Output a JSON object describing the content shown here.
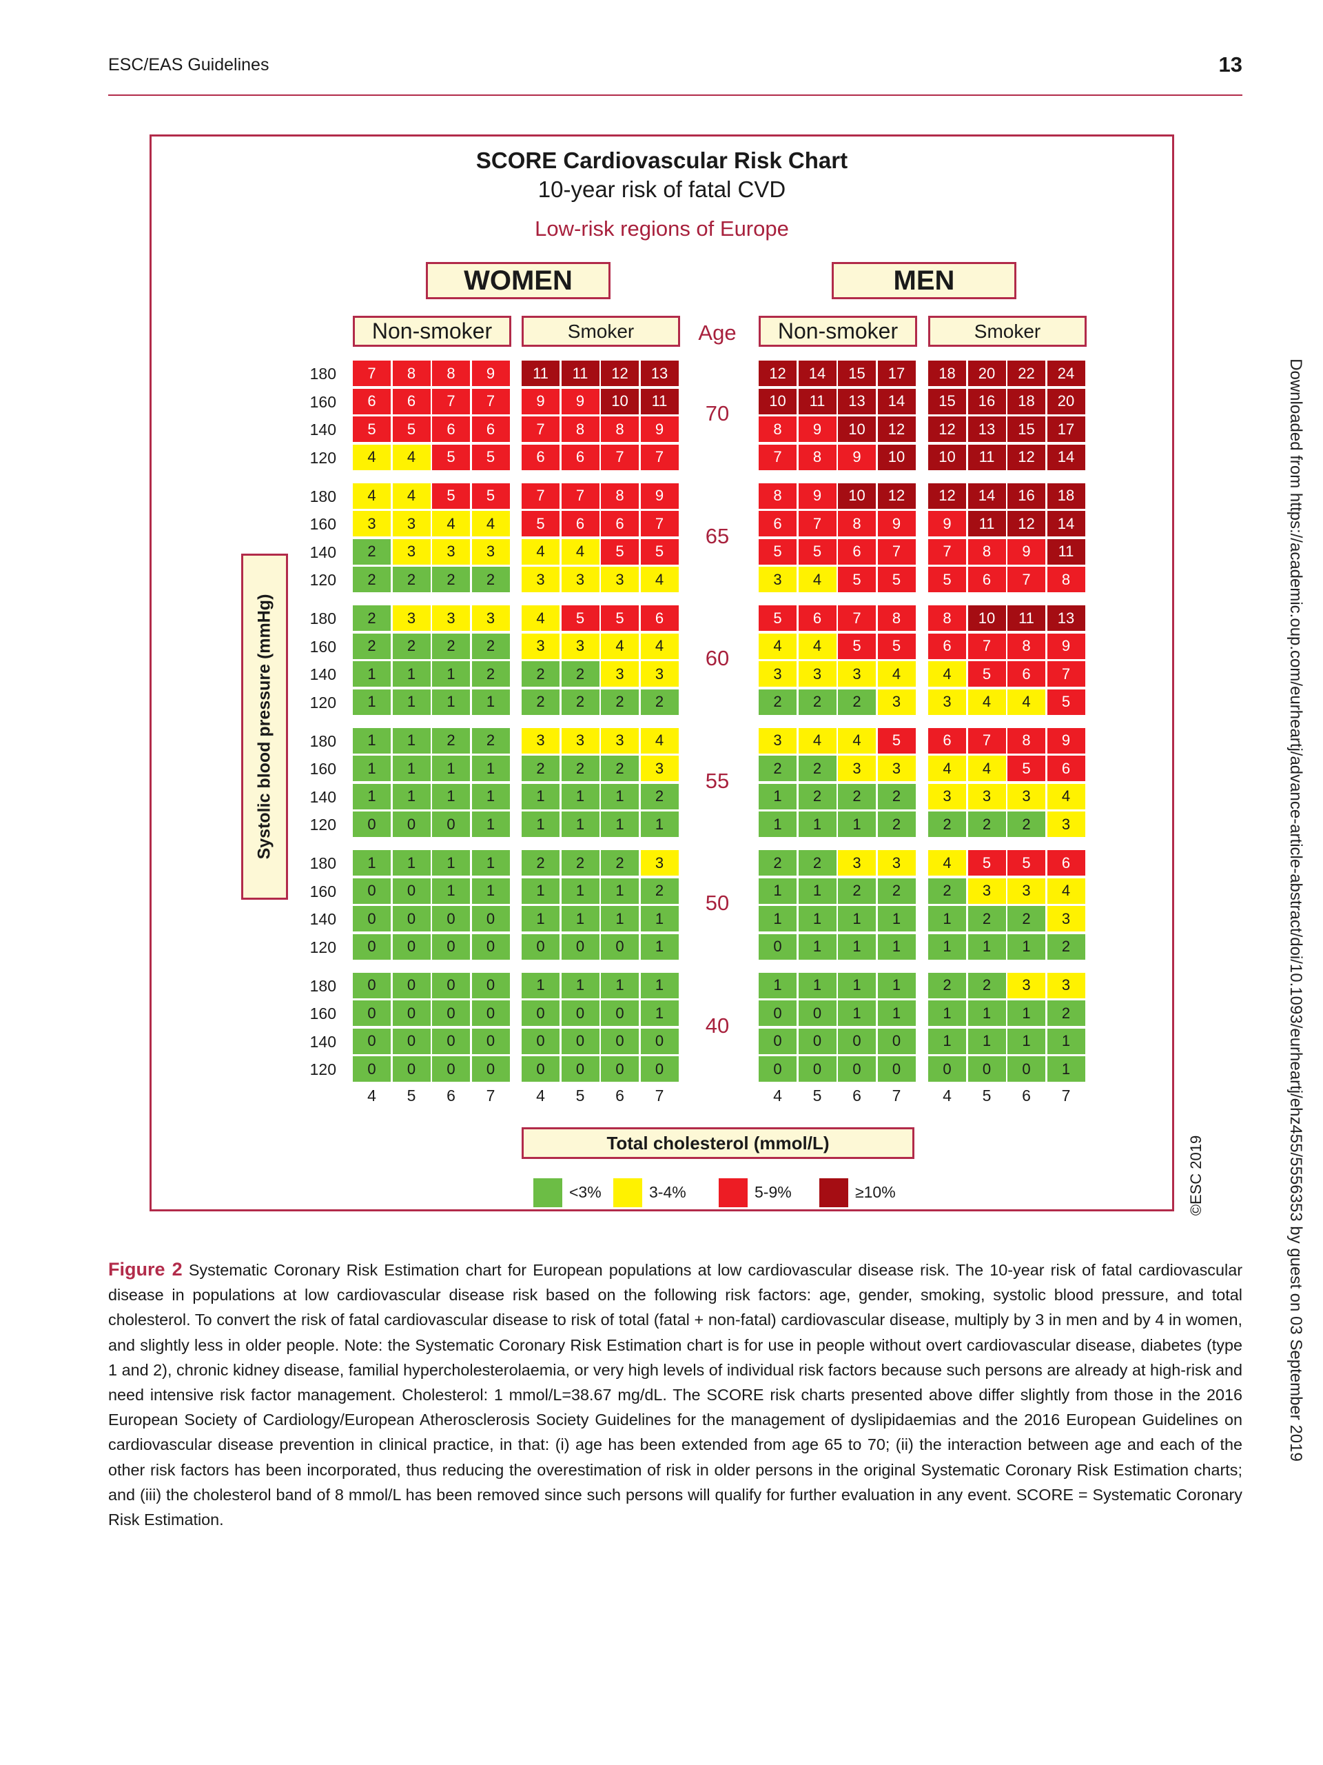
{
  "header": {
    "journal": "ESC/EAS Guidelines",
    "page_number": "13"
  },
  "copyright": "©ESC 2019",
  "side_note": "Downloaded from https://academic.oup.com/eurheartj/advance-article-abstract/doi/10.1093/eurheartj/ehz455/5556353 by guest on 03 September 2019",
  "caption": {
    "label": "Figure 2",
    "text": "Systematic Coronary Risk Estimation chart for European populations at low cardiovascular disease risk. The 10-year risk of fatal cardiovascular disease in populations at low cardiovascular disease risk based on the following risk factors: age, gender, smoking, systolic blood pressure, and total cholesterol. To convert the risk of fatal cardiovascular disease to risk of total (fatal + non-fatal) cardiovascular disease, multiply by 3 in men and by 4 in women, and slightly less in older people. Note: the Systematic Coronary Risk Estimation chart is for use in people without overt cardiovascular disease, diabetes (type 1 and 2), chronic kidney disease, familial hypercholesterolaemia, or very high levels of individual risk factors because such persons are already at high-risk and need intensive risk factor management. Cholesterol: 1 mmol/L=38.67 mg/dL. The SCORE risk charts presented above differ slightly from those in the 2016 European Society of Cardiology/European Atherosclerosis Society Guidelines for the management of dyslipidaemias and the 2016 European Guidelines on cardiovascular disease prevention in clinical practice, in that: (i) age has been extended from age 65 to 70; (ii) the interaction between age and each of the other risk factors has been incorporated, thus reducing the overestimation of risk in older persons in the original Systematic Coronary Risk Estimation charts; and (iii) the cholesterol band of 8 mmol/L has been removed since such persons will qualify for further evaluation in any event. SCORE = Systematic Coronary Risk Estimation."
  },
  "chart_data": {
    "type": "heatmap",
    "title": "SCORE Cardiovascular Risk Chart",
    "subtitle": "10-year risk of fatal CVD",
    "region": "Low-risk regions of Europe",
    "sex_labels": [
      "WOMEN",
      "MEN"
    ],
    "smoking_labels": [
      "Non-smoker",
      "Smoker"
    ],
    "age_label": "Age",
    "ylabel": "Systolic blood pressure (mmHg)",
    "xlabel": "Total cholesterol (mmol/L)",
    "ages": [
      "70",
      "65",
      "60",
      "55",
      "50",
      "40"
    ],
    "sbp": [
      "180",
      "160",
      "140",
      "120"
    ],
    "cholesterol": [
      "4",
      "5",
      "6",
      "7"
    ],
    "legend": [
      {
        "label": "<3%",
        "color": "#6cbd45"
      },
      {
        "label": "3-4%",
        "color": "#fff200"
      },
      {
        "label": "5-9%",
        "color": "#ed1c24"
      },
      {
        "label": "≥10%",
        "color": "#a50d13"
      }
    ],
    "panels": [
      {
        "sex": "WOMEN",
        "smoking": "Non-smoker",
        "data": [
          [
            [
              7,
              8,
              8,
              9
            ],
            [
              6,
              6,
              7,
              7
            ],
            [
              5,
              5,
              6,
              6
            ],
            [
              4,
              4,
              5,
              5
            ]
          ],
          [
            [
              4,
              4,
              5,
              5
            ],
            [
              3,
              3,
              4,
              4
            ],
            [
              2,
              3,
              3,
              3
            ],
            [
              2,
              2,
              2,
              2
            ]
          ],
          [
            [
              2,
              3,
              3,
              3
            ],
            [
              2,
              2,
              2,
              2
            ],
            [
              1,
              1,
              1,
              2
            ],
            [
              1,
              1,
              1,
              1
            ]
          ],
          [
            [
              1,
              1,
              2,
              2
            ],
            [
              1,
              1,
              1,
              1
            ],
            [
              1,
              1,
              1,
              1
            ],
            [
              0,
              0,
              0,
              1
            ]
          ],
          [
            [
              1,
              1,
              1,
              1
            ],
            [
              0,
              0,
              1,
              1
            ],
            [
              0,
              0,
              0,
              0
            ],
            [
              0,
              0,
              0,
              0
            ]
          ],
          [
            [
              0,
              0,
              0,
              0
            ],
            [
              0,
              0,
              0,
              0
            ],
            [
              0,
              0,
              0,
              0
            ],
            [
              0,
              0,
              0,
              0
            ]
          ]
        ]
      },
      {
        "sex": "WOMEN",
        "smoking": "Smoker",
        "data": [
          [
            [
              11,
              11,
              12,
              13
            ],
            [
              9,
              9,
              10,
              11
            ],
            [
              7,
              8,
              8,
              9
            ],
            [
              6,
              6,
              7,
              7
            ]
          ],
          [
            [
              7,
              7,
              8,
              9
            ],
            [
              5,
              6,
              6,
              7
            ],
            [
              4,
              4,
              5,
              5
            ],
            [
              3,
              3,
              3,
              4
            ]
          ],
          [
            [
              4,
              5,
              5,
              6
            ],
            [
              3,
              3,
              4,
              4
            ],
            [
              2,
              2,
              3,
              3
            ],
            [
              2,
              2,
              2,
              2
            ]
          ],
          [
            [
              3,
              3,
              3,
              4
            ],
            [
              2,
              2,
              2,
              3
            ],
            [
              1,
              1,
              1,
              2
            ],
            [
              1,
              1,
              1,
              1
            ]
          ],
          [
            [
              2,
              2,
              2,
              3
            ],
            [
              1,
              1,
              1,
              2
            ],
            [
              1,
              1,
              1,
              1
            ],
            [
              0,
              0,
              0,
              1
            ]
          ],
          [
            [
              1,
              1,
              1,
              1
            ],
            [
              0,
              0,
              0,
              1
            ],
            [
              0,
              0,
              0,
              0
            ],
            [
              0,
              0,
              0,
              0
            ]
          ]
        ]
      },
      {
        "sex": "MEN",
        "smoking": "Non-smoker",
        "data": [
          [
            [
              12,
              14,
              15,
              17
            ],
            [
              10,
              11,
              13,
              14
            ],
            [
              8,
              9,
              10,
              12
            ],
            [
              7,
              8,
              9,
              10
            ]
          ],
          [
            [
              8,
              9,
              10,
              12
            ],
            [
              6,
              7,
              8,
              9
            ],
            [
              5,
              5,
              6,
              7
            ],
            [
              3,
              4,
              5,
              5
            ]
          ],
          [
            [
              5,
              6,
              7,
              8
            ],
            [
              4,
              4,
              5,
              5
            ],
            [
              3,
              3,
              3,
              4
            ],
            [
              2,
              2,
              2,
              3
            ]
          ],
          [
            [
              3,
              4,
              4,
              5
            ],
            [
              2,
              2,
              3,
              3
            ],
            [
              1,
              2,
              2,
              2
            ],
            [
              1,
              1,
              1,
              2
            ]
          ],
          [
            [
              2,
              2,
              3,
              3
            ],
            [
              1,
              1,
              2,
              2
            ],
            [
              1,
              1,
              1,
              1
            ],
            [
              0,
              1,
              1,
              1
            ]
          ],
          [
            [
              1,
              1,
              1,
              1
            ],
            [
              0,
              0,
              1,
              1
            ],
            [
              0,
              0,
              0,
              0
            ],
            [
              0,
              0,
              0,
              0
            ]
          ]
        ]
      },
      {
        "sex": "MEN",
        "smoking": "Smoker",
        "data": [
          [
            [
              18,
              20,
              22,
              24
            ],
            [
              15,
              16,
              18,
              20
            ],
            [
              12,
              13,
              15,
              17
            ],
            [
              10,
              11,
              12,
              14
            ]
          ],
          [
            [
              12,
              14,
              16,
              18
            ],
            [
              9,
              11,
              12,
              14
            ],
            [
              7,
              8,
              9,
              11
            ],
            [
              5,
              6,
              7,
              8
            ]
          ],
          [
            [
              8,
              10,
              11,
              13
            ],
            [
              6,
              7,
              8,
              9
            ],
            [
              4,
              5,
              6,
              7
            ],
            [
              3,
              4,
              4,
              5
            ]
          ],
          [
            [
              6,
              7,
              8,
              9
            ],
            [
              4,
              4,
              5,
              6
            ],
            [
              3,
              3,
              3,
              4
            ],
            [
              2,
              2,
              2,
              3
            ]
          ],
          [
            [
              4,
              5,
              5,
              6
            ],
            [
              2,
              3,
              3,
              4
            ],
            [
              1,
              2,
              2,
              3
            ],
            [
              1,
              1,
              1,
              2
            ]
          ],
          [
            [
              2,
              2,
              3,
              3
            ],
            [
              1,
              1,
              1,
              2
            ],
            [
              1,
              1,
              1,
              1
            ],
            [
              0,
              0,
              0,
              1
            ]
          ]
        ]
      }
    ]
  }
}
